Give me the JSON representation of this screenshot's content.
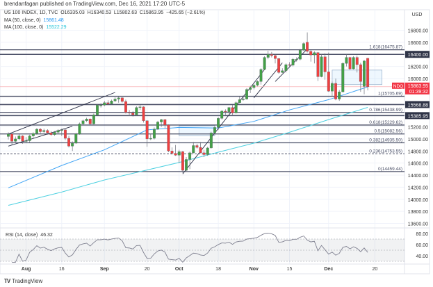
{
  "header": {
    "published": "brendanfagan published on TradingView.com, Dec 16, 2021 17:20 UTC-5"
  },
  "legend": {
    "symbol": "US 100 INDEX, 1D, TVC",
    "open": "O16335.03",
    "high": "H16340.53",
    "low": "L15802.63",
    "close": "C15863.95",
    "change": "−425.65 (−2.61%)",
    "ma50_label": "MA (50, close, 0)",
    "ma50_value": "15861.48",
    "ma100_label": "MA (100, close, 0)",
    "ma100_value": "15522.29"
  },
  "footer": {
    "logo": "TradingView"
  },
  "colors": {
    "up": "#43a047",
    "down": "#ef4040",
    "ma50": "#42a5f5",
    "ma100": "#4dd0e1",
    "level": "#4a4f66",
    "last_price": "#f23645",
    "rsi": "#7e7f8f"
  },
  "chart_data": {
    "type": "candlestick",
    "currency": "USD",
    "ylim": [
      13450,
      16950
    ],
    "y_ticks": [
      "16800.00",
      "16600.00",
      "16200.00",
      "16000.00",
      "15200.00",
      "15000.00",
      "14800.00",
      "14600.00",
      "14400.00",
      "14200.00",
      "14000.00",
      "13800.00",
      "13600.00"
    ],
    "x_ticks": [
      {
        "label": "Aug",
        "date": "Aug 2"
      },
      {
        "label": "16",
        "date": "Aug 16"
      },
      {
        "label": "Sep",
        "date": "Sep 1"
      },
      {
        "label": "20",
        "date": "Sep 20"
      },
      {
        "label": "Oct",
        "date": "Oct 1"
      },
      {
        "label": "18",
        "date": "Oct 18"
      },
      {
        "label": "Nov",
        "date": "Nov 1"
      },
      {
        "label": "15",
        "date": "Nov 15"
      },
      {
        "label": "Dec",
        "date": "Dec 1"
      },
      {
        "label": "20",
        "date": "Dec 20"
      }
    ],
    "candles": [
      [
        "Jul 26",
        15040,
        15110,
        14990,
        15080
      ],
      [
        "Jul 27",
        15080,
        15090,
        14900,
        14960
      ],
      [
        "Jul 28",
        14960,
        15040,
        14930,
        15000
      ],
      [
        "Jul 29",
        15000,
        15080,
        14980,
        15050
      ],
      [
        "Jul 30",
        15050,
        15060,
        14920,
        14960
      ],
      [
        "Aug 2",
        14960,
        15030,
        14930,
        14970
      ],
      [
        "Aug 3",
        14970,
        15070,
        14940,
        15050
      ],
      [
        "Aug 4",
        15050,
        15110,
        15020,
        15090
      ],
      [
        "Aug 5",
        15090,
        15180,
        15070,
        15160
      ],
      [
        "Aug 6",
        15160,
        15180,
        15090,
        15120
      ],
      [
        "Aug 9",
        15120,
        15170,
        15100,
        15140
      ],
      [
        "Aug 10",
        15140,
        15160,
        15070,
        15100
      ],
      [
        "Aug 11",
        15100,
        15130,
        15050,
        15070
      ],
      [
        "Aug 12",
        15070,
        15130,
        15050,
        15110
      ],
      [
        "Aug 13",
        15110,
        15160,
        15090,
        15140
      ],
      [
        "Aug 16",
        15140,
        15170,
        15050,
        15150
      ],
      [
        "Aug 17",
        15150,
        15160,
        14980,
        15010
      ],
      [
        "Aug 18",
        15010,
        15050,
        14860,
        14880
      ],
      [
        "Aug 19",
        14880,
        14960,
        14800,
        14930
      ],
      [
        "Aug 20",
        14930,
        15100,
        14920,
        15080
      ],
      [
        "Aug 23",
        15080,
        15270,
        15070,
        15250
      ],
      [
        "Aug 24",
        15250,
        15320,
        15230,
        15300
      ],
      [
        "Aug 25",
        15300,
        15350,
        15280,
        15330
      ],
      [
        "Aug 26",
        15330,
        15340,
        15230,
        15250
      ],
      [
        "Aug 27",
        15250,
        15420,
        15240,
        15400
      ],
      [
        "Aug 30",
        15400,
        15580,
        15390,
        15560
      ],
      [
        "Aug 31",
        15560,
        15590,
        15520,
        15560
      ],
      [
        "Sep 1",
        15560,
        15630,
        15540,
        15600
      ],
      [
        "Sep 2",
        15600,
        15640,
        15560,
        15580
      ],
      [
        "Sep 3",
        15580,
        15650,
        15570,
        15630
      ],
      [
        "Sep 7",
        15630,
        15690,
        15610,
        15660
      ],
      [
        "Sep 8",
        15660,
        15700,
        15600,
        15680
      ],
      [
        "Sep 9",
        15680,
        15690,
        15600,
        15620
      ],
      [
        "Sep 10",
        15620,
        15650,
        15420,
        15440
      ],
      [
        "Sep 13",
        15440,
        15480,
        15380,
        15430
      ],
      [
        "Sep 14",
        15430,
        15460,
        15370,
        15400
      ],
      [
        "Sep 15",
        15400,
        15540,
        15380,
        15520
      ],
      [
        "Sep 16",
        15520,
        15560,
        15480,
        15530
      ],
      [
        "Sep 17",
        15530,
        15540,
        15270,
        15300
      ],
      [
        "Sep 20",
        15300,
        15310,
        14870,
        15000
      ],
      [
        "Sep 21",
        15000,
        15090,
        14980,
        15010
      ],
      [
        "Sep 22",
        15010,
        15190,
        14990,
        15160
      ],
      [
        "Sep 23",
        15160,
        15300,
        15150,
        15280
      ],
      [
        "Sep 24",
        15280,
        15330,
        15200,
        15320
      ],
      [
        "Sep 27",
        15320,
        15330,
        15180,
        15230
      ],
      [
        "Sep 28",
        15230,
        15240,
        14780,
        14800
      ],
      [
        "Sep 29",
        14800,
        14860,
        14740,
        14760
      ],
      [
        "Sep 30",
        14760,
        14900,
        14720,
        14730
      ],
      [
        "Oct 1",
        14730,
        14820,
        14600,
        14790
      ],
      [
        "Oct 4",
        14790,
        14800,
        14440,
        14480
      ],
      [
        "Oct 5",
        14480,
        14700,
        14470,
        14660
      ],
      [
        "Oct 6",
        14660,
        14790,
        14500,
        14770
      ],
      [
        "Oct 7",
        14770,
        14950,
        14760,
        14890
      ],
      [
        "Oct 8",
        14890,
        14920,
        14840,
        14860
      ],
      [
        "Oct 11",
        14860,
        14950,
        14760,
        14770
      ],
      [
        "Oct 12",
        14770,
        14820,
        14700,
        14740
      ],
      [
        "Oct 13",
        14740,
        14870,
        14720,
        14850
      ],
      [
        "Oct 14",
        14850,
        15120,
        14840,
        15100
      ],
      [
        "Oct 15",
        15100,
        15210,
        15080,
        15190
      ],
      [
        "Oct 18",
        15190,
        15360,
        15150,
        15340
      ],
      [
        "Oct 19",
        15340,
        15480,
        15320,
        15460
      ],
      [
        "Oct 20",
        15460,
        15490,
        15400,
        15450
      ],
      [
        "Oct 21",
        15450,
        15530,
        15420,
        15520
      ],
      [
        "Oct 22",
        15520,
        15560,
        15400,
        15430
      ],
      [
        "Oct 25",
        15430,
        15620,
        15420,
        15600
      ],
      [
        "Oct 26",
        15600,
        15700,
        15590,
        15650
      ],
      [
        "Oct 27",
        15650,
        15720,
        15630,
        15660
      ],
      [
        "Oct 28",
        15660,
        15840,
        15650,
        15820
      ],
      [
        "Oct 29",
        15820,
        15880,
        15760,
        15850
      ],
      [
        "Nov 1",
        15850,
        15910,
        15820,
        15890
      ],
      [
        "Nov 2",
        15890,
        15970,
        15870,
        15950
      ],
      [
        "Nov 3",
        15950,
        16170,
        15900,
        16150
      ],
      [
        "Nov 4",
        16150,
        16370,
        16140,
        16350
      ],
      [
        "Nov 5",
        16350,
        16460,
        16320,
        16400
      ],
      [
        "Nov 8",
        16400,
        16440,
        16350,
        16380
      ],
      [
        "Nov 9",
        16380,
        16400,
        16250,
        16330
      ],
      [
        "Nov 10",
        16330,
        16340,
        16080,
        16100
      ],
      [
        "Nov 11",
        16100,
        16170,
        16090,
        16130
      ],
      [
        "Nov 12",
        16130,
        16250,
        16100,
        16230
      ],
      [
        "Nov 15",
        16230,
        16270,
        16180,
        16220
      ],
      [
        "Nov 16",
        16220,
        16340,
        16200,
        16320
      ],
      [
        "Nov 17",
        16320,
        16350,
        16280,
        16320
      ],
      [
        "Nov 18",
        16320,
        16490,
        16300,
        16470
      ],
      [
        "Nov 19",
        16470,
        16600,
        16460,
        16580
      ],
      [
        "Nov 22",
        16600,
        16764,
        16430,
        16450
      ],
      [
        "Nov 23",
        16450,
        16470,
        16280,
        16390
      ],
      [
        "Nov 24",
        16390,
        16450,
        16250,
        16430
      ],
      [
        "Nov 26",
        16430,
        16440,
        15960,
        16030
      ],
      [
        "Nov 29",
        16030,
        16400,
        16020,
        16360
      ],
      [
        "Nov 30",
        16360,
        16420,
        15980,
        16110
      ],
      [
        "Dec 1",
        16110,
        16430,
        15780,
        15790
      ],
      [
        "Dec 2",
        15790,
        15950,
        15700,
        15920
      ],
      [
        "Dec 3",
        15920,
        16000,
        15640,
        15660
      ],
      [
        "Dec 6",
        15660,
        15810,
        15630,
        15780
      ],
      [
        "Dec 7",
        15780,
        16270,
        15770,
        16250
      ],
      [
        "Dec 8",
        16250,
        16400,
        16200,
        16350
      ],
      [
        "Dec 9",
        16350,
        16360,
        16140,
        16160
      ],
      [
        "Dec 10",
        16160,
        16370,
        16150,
        16350
      ],
      [
        "Dec 13",
        16350,
        16380,
        16100,
        16230
      ],
      [
        "Dec 14",
        16230,
        16260,
        15780,
        15950
      ],
      [
        "Dec 15",
        15870,
        16310,
        15740,
        16290
      ],
      [
        "Dec 16",
        16335.03,
        16340.53,
        15802.63,
        15863.95
      ]
    ],
    "ma50": [
      [
        "Jul 26",
        14190
      ],
      [
        "Aug 16",
        14560
      ],
      [
        "Sep 1",
        14820
      ],
      [
        "Sep 20",
        15150
      ],
      [
        "Oct 1",
        15190
      ],
      [
        "Oct 18",
        15180
      ],
      [
        "Nov 1",
        15290
      ],
      [
        "Nov 15",
        15480
      ],
      [
        "Dec 1",
        15650
      ],
      [
        "Dec 16",
        15861.48
      ]
    ],
    "ma100": [
      [
        "Jul 26",
        13900
      ],
      [
        "Aug 16",
        14120
      ],
      [
        "Sep 1",
        14320
      ],
      [
        "Oct 1",
        14610
      ],
      [
        "Oct 18",
        14780
      ],
      [
        "Nov 1",
        14930
      ],
      [
        "Nov 15",
        15110
      ],
      [
        "Dec 1",
        15320
      ],
      [
        "Dec 16",
        15522.29
      ]
    ],
    "fib_levels": [
      {
        "label": "1.618(16475.87)",
        "value": 16475.87
      },
      {
        "label": "1(15705.69)",
        "value": 15705.69
      },
      {
        "label": "0.786(15438.99)",
        "value": 15438.99
      },
      {
        "label": "0.618(15229.62)",
        "value": 15229.62
      },
      {
        "label": "0.5(15082.56)",
        "value": 15082.56
      },
      {
        "label": "0.382(14935.50)",
        "value": 14935.5
      },
      {
        "label": "0.236(14753.55)",
        "value": 14753.55,
        "dashed": true
      },
      {
        "label": "0(14459.44)",
        "value": 14459.44
      }
    ],
    "horizontal_levels": [
      {
        "label": "16400.00",
        "value": 16400
      },
      {
        "label": "15568.88",
        "value": 15568.88
      },
      {
        "label": "15385.95",
        "value": 15385.95
      }
    ],
    "last_price": {
      "symbol": "NDQ",
      "value": "15863.95",
      "countdown": "01:39:32",
      "price": 15863.95
    },
    "trendlines": [
      [
        [
          "Jul 26",
          15080
        ],
        [
          "Sep 7",
          15770
        ]
      ],
      [
        [
          "Jul 26",
          14880
        ],
        [
          "Aug 19",
          15210
        ]
      ],
      [
        [
          "Oct 4",
          14420
        ],
        [
          "Nov 4",
          16150
        ]
      ],
      [
        [
          "Nov 9",
          15950
        ],
        [
          "Nov 22",
          16490
        ]
      ],
      [
        [
          "Nov 1",
          15680
        ],
        [
          "Nov 11",
          16260
        ]
      ]
    ],
    "boxes": [
      {
        "from": "Oct 1",
        "to": "Oct 15",
        "top": 15220,
        "bottom": 15050
      },
      {
        "from": "Dec 2",
        "to": "Dec 22",
        "top": 16140,
        "bottom": 15900
      }
    ],
    "rsi": {
      "label": "RSI (14, close)",
      "value": "46.32",
      "levels": [
        70,
        50,
        30
      ],
      "y_ticks": [
        "80.00",
        "60.00",
        "40.00"
      ],
      "ylim": [
        25,
        85
      ]
    }
  }
}
